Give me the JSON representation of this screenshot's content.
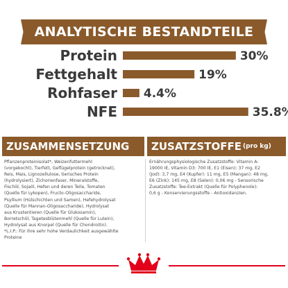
{
  "header": {
    "title": "ANALYTISCHE BESTANDTEILE"
  },
  "colors": {
    "brown": "#8a5a2b",
    "red": "#e2001a",
    "text": "#3a3a3a"
  },
  "chart_data": {
    "type": "bar",
    "orientation": "horizontal",
    "title": "",
    "xlabel": "",
    "ylabel": "",
    "categories": [
      "Protein",
      "Fettgehalt",
      "Rohfaser",
      "NFE"
    ],
    "values": [
      30,
      19,
      4.4,
      35.8
    ],
    "value_labels": [
      "30%",
      "19%",
      "4.4%",
      "35.8%"
    ],
    "xlim": [
      0,
      42
    ],
    "grid": false,
    "legend": "none"
  },
  "composition": {
    "title": "ZUSAMMENSETZUNG",
    "lines": [
      "Pflanzenproteinisolat*, Weizenfuttermehl",
      "(vorgekocht), Tierfett, Geflügelprotein (getrocknet),",
      "Reis, Mais, Lignozellulose, tierisches Protein",
      "(hydrolysiert), Zichorienfaser, Mineralstoffe,",
      "Fischöl, Sojaöl, Hefen und deren Teile, Tomaten",
      "(Quelle für Lykopen), Fructo-Oligosaccharide,",
      "Psyllium (Hülschichten und Samen), Hefehydrolysat",
      "(Quelle für Mannan-Oligosaccharide), Hydrolysat",
      "aus Krustentieren (Quelle für Glukosamin),",
      "Borretschöl, Tagetesblütenmehl (Quelle für Lutein),",
      "Hydrolysat aus Knorpel (Quelle für Chondroitin).",
      "*L.I.P.: Für ihre sehr hohe Verdaulichkeit ausgewählte",
      "Proteine"
    ]
  },
  "additives": {
    "title": "ZUSATZSTOFFE",
    "unit": "(pro kg)",
    "lines": [
      "Ernährungsphysiologische Zusatzstoffe: Vitamin A:",
      "19000 IE, Vitamin D3: 700 IE, E1 (Eisen): 37 mg, E2",
      "(Jod): 3,7 mg, E4 (Kupfer): 11 mg, E5 (Mangan): 48 mg,",
      "E6 (Zink): 145 mg, E8 (Selen): 0,06 mg - Sensorische",
      "Zusatzstoffe: Tee-Extrakt (Quelle für Polyphenole):",
      "0,6 g - Konservierungsstoffe - Antioxidanzien."
    ]
  },
  "logo": {
    "icon": "royal-canin-crown-logo"
  }
}
